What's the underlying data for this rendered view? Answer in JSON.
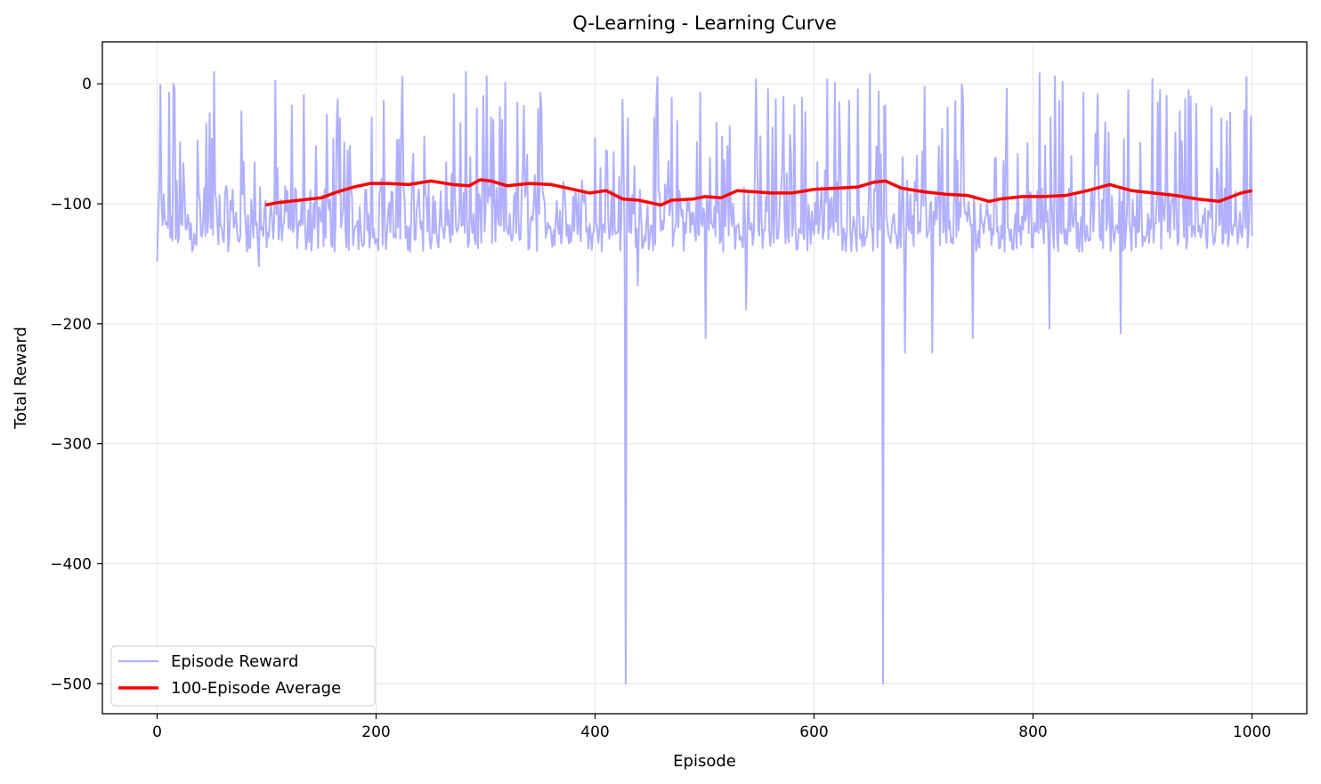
{
  "chart_data": {
    "type": "line",
    "title": "Q-Learning - Learning Curve",
    "xlabel": "Episode",
    "ylabel": "Total Reward",
    "xlim": [
      -50,
      1050
    ],
    "ylim": [
      -525,
      35
    ],
    "x_ticks": [
      0,
      200,
      400,
      600,
      800,
      1000
    ],
    "y_ticks": [
      0,
      -100,
      -200,
      -300,
      -400,
      -500
    ],
    "x_tick_labels": [
      "0",
      "200",
      "400",
      "600",
      "800",
      "1000"
    ],
    "y_tick_labels": [
      "0",
      "−100",
      "−200",
      "−300",
      "−400",
      "−500"
    ],
    "grid": true,
    "legend_position": "lower-left",
    "series": [
      {
        "name": "Episode Reward",
        "color": "#b0b0ff",
        "x_start": 0,
        "x_end": 1000,
        "typical_range": [
          -150,
          10
        ],
        "notes_values_sampled": true,
        "key_points": [
          {
            "x": 0,
            "y": -148
          },
          {
            "x": 3,
            "y": -1
          },
          {
            "x": 15,
            "y": 0
          },
          {
            "x": 52,
            "y": 10
          },
          {
            "x": 93,
            "y": -152
          },
          {
            "x": 428,
            "y": -500
          },
          {
            "x": 439,
            "y": -168
          },
          {
            "x": 501,
            "y": -212
          },
          {
            "x": 538,
            "y": -188
          },
          {
            "x": 663,
            "y": -500
          },
          {
            "x": 683,
            "y": -224
          },
          {
            "x": 708,
            "y": -224
          },
          {
            "x": 745,
            "y": -212
          },
          {
            "x": 815,
            "y": -204
          },
          {
            "x": 880,
            "y": -208
          },
          {
            "x": 1000,
            "y": -127
          }
        ]
      },
      {
        "name": "100-Episode Average",
        "color": "#ff0000",
        "x": [
          99,
          110,
          130,
          150,
          165,
          180,
          195,
          210,
          230,
          250,
          270,
          285,
          295,
          305,
          320,
          340,
          360,
          380,
          395,
          410,
          425,
          440,
          460,
          470,
          490,
          500,
          515,
          530,
          545,
          560,
          580,
          600,
          620,
          640,
          655,
          665,
          680,
          700,
          720,
          740,
          760,
          770,
          790,
          810,
          830,
          850,
          870,
          890,
          910,
          930,
          950,
          970,
          990,
          1000
        ],
        "y": [
          -101,
          -99,
          -97,
          -95,
          -90,
          -86,
          -83,
          -83,
          -84,
          -81,
          -84,
          -85,
          -80,
          -81,
          -85,
          -83,
          -84,
          -88,
          -91,
          -89,
          -96,
          -97,
          -101,
          -97,
          -96,
          -94,
          -95,
          -89,
          -90,
          -91,
          -91,
          -88,
          -87,
          -86,
          -82,
          -81,
          -87,
          -90,
          -92,
          -93,
          -98,
          -96,
          -94,
          -94,
          -93,
          -89,
          -84,
          -89,
          -91,
          -93,
          -96,
          -98,
          -91,
          -89
        ]
      }
    ]
  }
}
